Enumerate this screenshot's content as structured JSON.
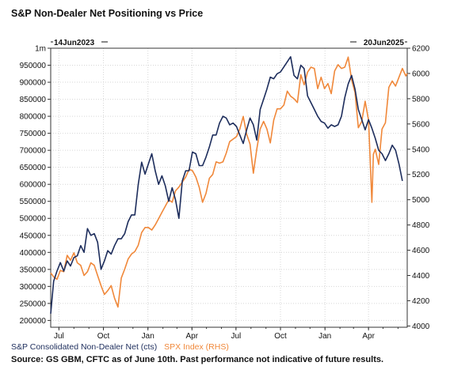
{
  "title": "S&P Non-Dealer Net Positioning vs Price",
  "footer": "Source: GS GBM, CFTC as of June 10th. Past performance not indicative of future results.",
  "chart_data": {
    "type": "line",
    "start_label": "14Jun2023",
    "end_label": "20Jun2025",
    "x_ticks": [
      "Jul",
      "Oct",
      "Jan",
      "Apr",
      "Jul",
      "Oct",
      "Jan",
      "Apr"
    ],
    "x_range": [
      "2023-06-14",
      "2025-06-20"
    ],
    "x_ticks_dates": [
      "2023-07-01",
      "2023-10-01",
      "2024-01-01",
      "2024-04-01",
      "2024-07-01",
      "2024-10-01",
      "2025-01-01",
      "2025-04-01"
    ],
    "y_left": {
      "range": [
        180000,
        1000000
      ],
      "ticks": [
        200000,
        250000,
        300000,
        350000,
        400000,
        450000,
        500000,
        550000,
        600000,
        650000,
        700000,
        750000,
        800000,
        850000,
        900000,
        950000,
        1000000
      ],
      "tick_labels": [
        "200000",
        "250000",
        "300000",
        "350000",
        "400000",
        "450000",
        "500000",
        "550000",
        "600000",
        "650000",
        "700000",
        "750000",
        "800000",
        "850000",
        "900000",
        "950000",
        "1m"
      ]
    },
    "y_right": {
      "range": [
        3990,
        6200
      ],
      "ticks": [
        4000,
        4200,
        4400,
        4600,
        4800,
        5000,
        5200,
        5400,
        5600,
        5800,
        6000,
        6200
      ],
      "tick_labels": [
        "4000",
        "4200",
        "4400",
        "4600",
        "4800",
        "5000",
        "5200",
        "5400",
        "5600",
        "5800",
        "6000",
        "6200"
      ]
    },
    "grid": true,
    "legend_position": "bottom-left",
    "series": [
      {
        "name": "S&P Consolidated Non-Dealer Net (cts)",
        "axis": "left",
        "color": "#1d2d5c",
        "points": [
          [
            "2023-06-14",
            220000
          ],
          [
            "2023-06-20",
            315000
          ],
          [
            "2023-06-27",
            345000
          ],
          [
            "2023-07-04",
            370000
          ],
          [
            "2023-07-11",
            345000
          ],
          [
            "2023-07-18",
            375000
          ],
          [
            "2023-07-25",
            360000
          ],
          [
            "2023-08-01",
            385000
          ],
          [
            "2023-08-08",
            390000
          ],
          [
            "2023-08-15",
            420000
          ],
          [
            "2023-08-22",
            400000
          ],
          [
            "2023-08-29",
            470000
          ],
          [
            "2023-09-05",
            450000
          ],
          [
            "2023-09-12",
            455000
          ],
          [
            "2023-09-19",
            430000
          ],
          [
            "2023-09-26",
            350000
          ],
          [
            "2023-10-03",
            375000
          ],
          [
            "2023-10-10",
            405000
          ],
          [
            "2023-10-17",
            395000
          ],
          [
            "2023-10-24",
            420000
          ],
          [
            "2023-10-31",
            440000
          ],
          [
            "2023-11-07",
            440000
          ],
          [
            "2023-11-14",
            455000
          ],
          [
            "2023-11-21",
            490000
          ],
          [
            "2023-11-28",
            510000
          ],
          [
            "2023-12-05",
            510000
          ],
          [
            "2023-12-12",
            600000
          ],
          [
            "2023-12-19",
            665000
          ],
          [
            "2023-12-26",
            630000
          ],
          [
            "2024-01-02",
            660000
          ],
          [
            "2024-01-09",
            690000
          ],
          [
            "2024-01-16",
            640000
          ],
          [
            "2024-01-23",
            600000
          ],
          [
            "2024-01-30",
            625000
          ],
          [
            "2024-02-06",
            595000
          ],
          [
            "2024-02-13",
            550000
          ],
          [
            "2024-02-20",
            590000
          ],
          [
            "2024-02-27",
            555000
          ],
          [
            "2024-03-05",
            500000
          ],
          [
            "2024-03-12",
            610000
          ],
          [
            "2024-03-19",
            640000
          ],
          [
            "2024-03-26",
            640000
          ],
          [
            "2024-04-02",
            695000
          ],
          [
            "2024-04-09",
            690000
          ],
          [
            "2024-04-16",
            655000
          ],
          [
            "2024-04-23",
            655000
          ],
          [
            "2024-04-30",
            680000
          ],
          [
            "2024-05-07",
            710000
          ],
          [
            "2024-05-14",
            745000
          ],
          [
            "2024-05-21",
            745000
          ],
          [
            "2024-05-28",
            780000
          ],
          [
            "2024-06-04",
            800000
          ],
          [
            "2024-06-11",
            795000
          ],
          [
            "2024-06-18",
            775000
          ],
          [
            "2024-06-25",
            780000
          ],
          [
            "2024-07-02",
            770000
          ],
          [
            "2024-07-09",
            745000
          ],
          [
            "2024-07-16",
            720000
          ],
          [
            "2024-07-23",
            760000
          ],
          [
            "2024-07-30",
            795000
          ],
          [
            "2024-08-06",
            775000
          ],
          [
            "2024-08-13",
            730000
          ],
          [
            "2024-08-20",
            820000
          ],
          [
            "2024-08-27",
            850000
          ],
          [
            "2024-09-03",
            880000
          ],
          [
            "2024-09-10",
            915000
          ],
          [
            "2024-09-17",
            910000
          ],
          [
            "2024-09-24",
            925000
          ],
          [
            "2024-10-01",
            930000
          ],
          [
            "2024-10-08",
            945000
          ],
          [
            "2024-10-15",
            960000
          ],
          [
            "2024-10-22",
            975000
          ],
          [
            "2024-10-29",
            920000
          ],
          [
            "2024-11-05",
            910000
          ],
          [
            "2024-11-12",
            950000
          ],
          [
            "2024-11-19",
            940000
          ],
          [
            "2024-11-26",
            860000
          ],
          [
            "2024-12-03",
            840000
          ],
          [
            "2024-12-10",
            820000
          ],
          [
            "2024-12-17",
            800000
          ],
          [
            "2024-12-24",
            785000
          ],
          [
            "2024-12-31",
            780000
          ],
          [
            "2025-01-07",
            765000
          ],
          [
            "2025-01-14",
            775000
          ],
          [
            "2025-01-21",
            770000
          ],
          [
            "2025-01-28",
            775000
          ],
          [
            "2025-02-04",
            800000
          ],
          [
            "2025-02-11",
            855000
          ],
          [
            "2025-02-18",
            895000
          ],
          [
            "2025-02-25",
            920000
          ],
          [
            "2025-03-04",
            880000
          ],
          [
            "2025-03-11",
            820000
          ],
          [
            "2025-03-18",
            790000
          ],
          [
            "2025-03-25",
            760000
          ],
          [
            "2025-04-01",
            790000
          ],
          [
            "2025-04-08",
            765000
          ],
          [
            "2025-04-15",
            735000
          ],
          [
            "2025-04-22",
            700000
          ],
          [
            "2025-04-29",
            690000
          ],
          [
            "2025-05-06",
            670000
          ],
          [
            "2025-05-13",
            690000
          ],
          [
            "2025-05-20",
            715000
          ],
          [
            "2025-05-27",
            700000
          ],
          [
            "2025-06-03",
            660000
          ],
          [
            "2025-06-10",
            610000
          ]
        ]
      },
      {
        "name": "SPX Index (RHS)",
        "axis": "right",
        "color": "#f0883a",
        "points": [
          [
            "2023-06-14",
            4420
          ],
          [
            "2023-06-20",
            4390
          ],
          [
            "2023-06-27",
            4370
          ],
          [
            "2023-07-04",
            4440
          ],
          [
            "2023-07-11",
            4430
          ],
          [
            "2023-07-18",
            4560
          ],
          [
            "2023-07-25",
            4520
          ],
          [
            "2023-08-01",
            4580
          ],
          [
            "2023-08-08",
            4500
          ],
          [
            "2023-08-15",
            4480
          ],
          [
            "2023-08-22",
            4400
          ],
          [
            "2023-08-29",
            4430
          ],
          [
            "2023-09-05",
            4500
          ],
          [
            "2023-09-12",
            4480
          ],
          [
            "2023-09-19",
            4400
          ],
          [
            "2023-09-26",
            4320
          ],
          [
            "2023-10-03",
            4250
          ],
          [
            "2023-10-10",
            4280
          ],
          [
            "2023-10-17",
            4320
          ],
          [
            "2023-10-24",
            4220
          ],
          [
            "2023-10-31",
            4150
          ],
          [
            "2023-11-07",
            4380
          ],
          [
            "2023-11-14",
            4450
          ],
          [
            "2023-11-21",
            4530
          ],
          [
            "2023-11-28",
            4570
          ],
          [
            "2023-12-05",
            4590
          ],
          [
            "2023-12-12",
            4640
          ],
          [
            "2023-12-19",
            4740
          ],
          [
            "2023-12-26",
            4780
          ],
          [
            "2024-01-02",
            4780
          ],
          [
            "2024-01-09",
            4760
          ],
          [
            "2024-01-16",
            4800
          ],
          [
            "2024-01-23",
            4850
          ],
          [
            "2024-01-30",
            4900
          ],
          [
            "2024-02-06",
            4950
          ],
          [
            "2024-02-13",
            5000
          ],
          [
            "2024-02-20",
            4980
          ],
          [
            "2024-02-27",
            5070
          ],
          [
            "2024-03-05",
            5100
          ],
          [
            "2024-03-12",
            5140
          ],
          [
            "2024-03-19",
            5180
          ],
          [
            "2024-03-26",
            5240
          ],
          [
            "2024-04-02",
            5230
          ],
          [
            "2024-04-09",
            5180
          ],
          [
            "2024-04-16",
            5100
          ],
          [
            "2024-04-23",
            4980
          ],
          [
            "2024-04-30",
            5050
          ],
          [
            "2024-05-07",
            5170
          ],
          [
            "2024-05-14",
            5200
          ],
          [
            "2024-05-21",
            5300
          ],
          [
            "2024-05-28",
            5290
          ],
          [
            "2024-06-04",
            5300
          ],
          [
            "2024-06-11",
            5370
          ],
          [
            "2024-06-18",
            5460
          ],
          [
            "2024-06-25",
            5480
          ],
          [
            "2024-07-02",
            5500
          ],
          [
            "2024-07-09",
            5560
          ],
          [
            "2024-07-16",
            5660
          ],
          [
            "2024-07-23",
            5520
          ],
          [
            "2024-07-30",
            5440
          ],
          [
            "2024-08-06",
            5210
          ],
          [
            "2024-08-13",
            5400
          ],
          [
            "2024-08-20",
            5560
          ],
          [
            "2024-08-27",
            5620
          ],
          [
            "2024-09-03",
            5560
          ],
          [
            "2024-09-10",
            5450
          ],
          [
            "2024-09-17",
            5630
          ],
          [
            "2024-09-24",
            5720
          ],
          [
            "2024-10-01",
            5720
          ],
          [
            "2024-10-08",
            5750
          ],
          [
            "2024-10-15",
            5860
          ],
          [
            "2024-10-22",
            5820
          ],
          [
            "2024-10-29",
            5800
          ],
          [
            "2024-11-05",
            5770
          ],
          [
            "2024-11-12",
            5990
          ],
          [
            "2024-11-19",
            5910
          ],
          [
            "2024-11-26",
            6010
          ],
          [
            "2024-12-03",
            6050
          ],
          [
            "2024-12-10",
            6040
          ],
          [
            "2024-12-17",
            5880
          ],
          [
            "2024-12-24",
            5970
          ],
          [
            "2024-12-31",
            5880
          ],
          [
            "2025-01-07",
            5920
          ],
          [
            "2025-01-14",
            5840
          ],
          [
            "2025-01-21",
            6020
          ],
          [
            "2025-01-28",
            6070
          ],
          [
            "2025-02-04",
            6040
          ],
          [
            "2025-02-11",
            6050
          ],
          [
            "2025-02-18",
            6130
          ],
          [
            "2025-02-25",
            5950
          ],
          [
            "2025-03-04",
            5850
          ],
          [
            "2025-03-11",
            5570
          ],
          [
            "2025-03-18",
            5620
          ],
          [
            "2025-03-25",
            5780
          ],
          [
            "2025-04-01",
            5630
          ],
          [
            "2025-04-08",
            4980
          ],
          [
            "2025-04-11",
            5360
          ],
          [
            "2025-04-15",
            5400
          ],
          [
            "2025-04-22",
            5280
          ],
          [
            "2025-04-29",
            5560
          ],
          [
            "2025-05-06",
            5610
          ],
          [
            "2025-05-13",
            5890
          ],
          [
            "2025-05-20",
            5940
          ],
          [
            "2025-05-27",
            5900
          ],
          [
            "2025-06-03",
            5970
          ],
          [
            "2025-06-10",
            6040
          ],
          [
            "2025-06-17",
            5980
          ],
          [
            "2025-06-20",
            6000
          ]
        ]
      }
    ]
  }
}
